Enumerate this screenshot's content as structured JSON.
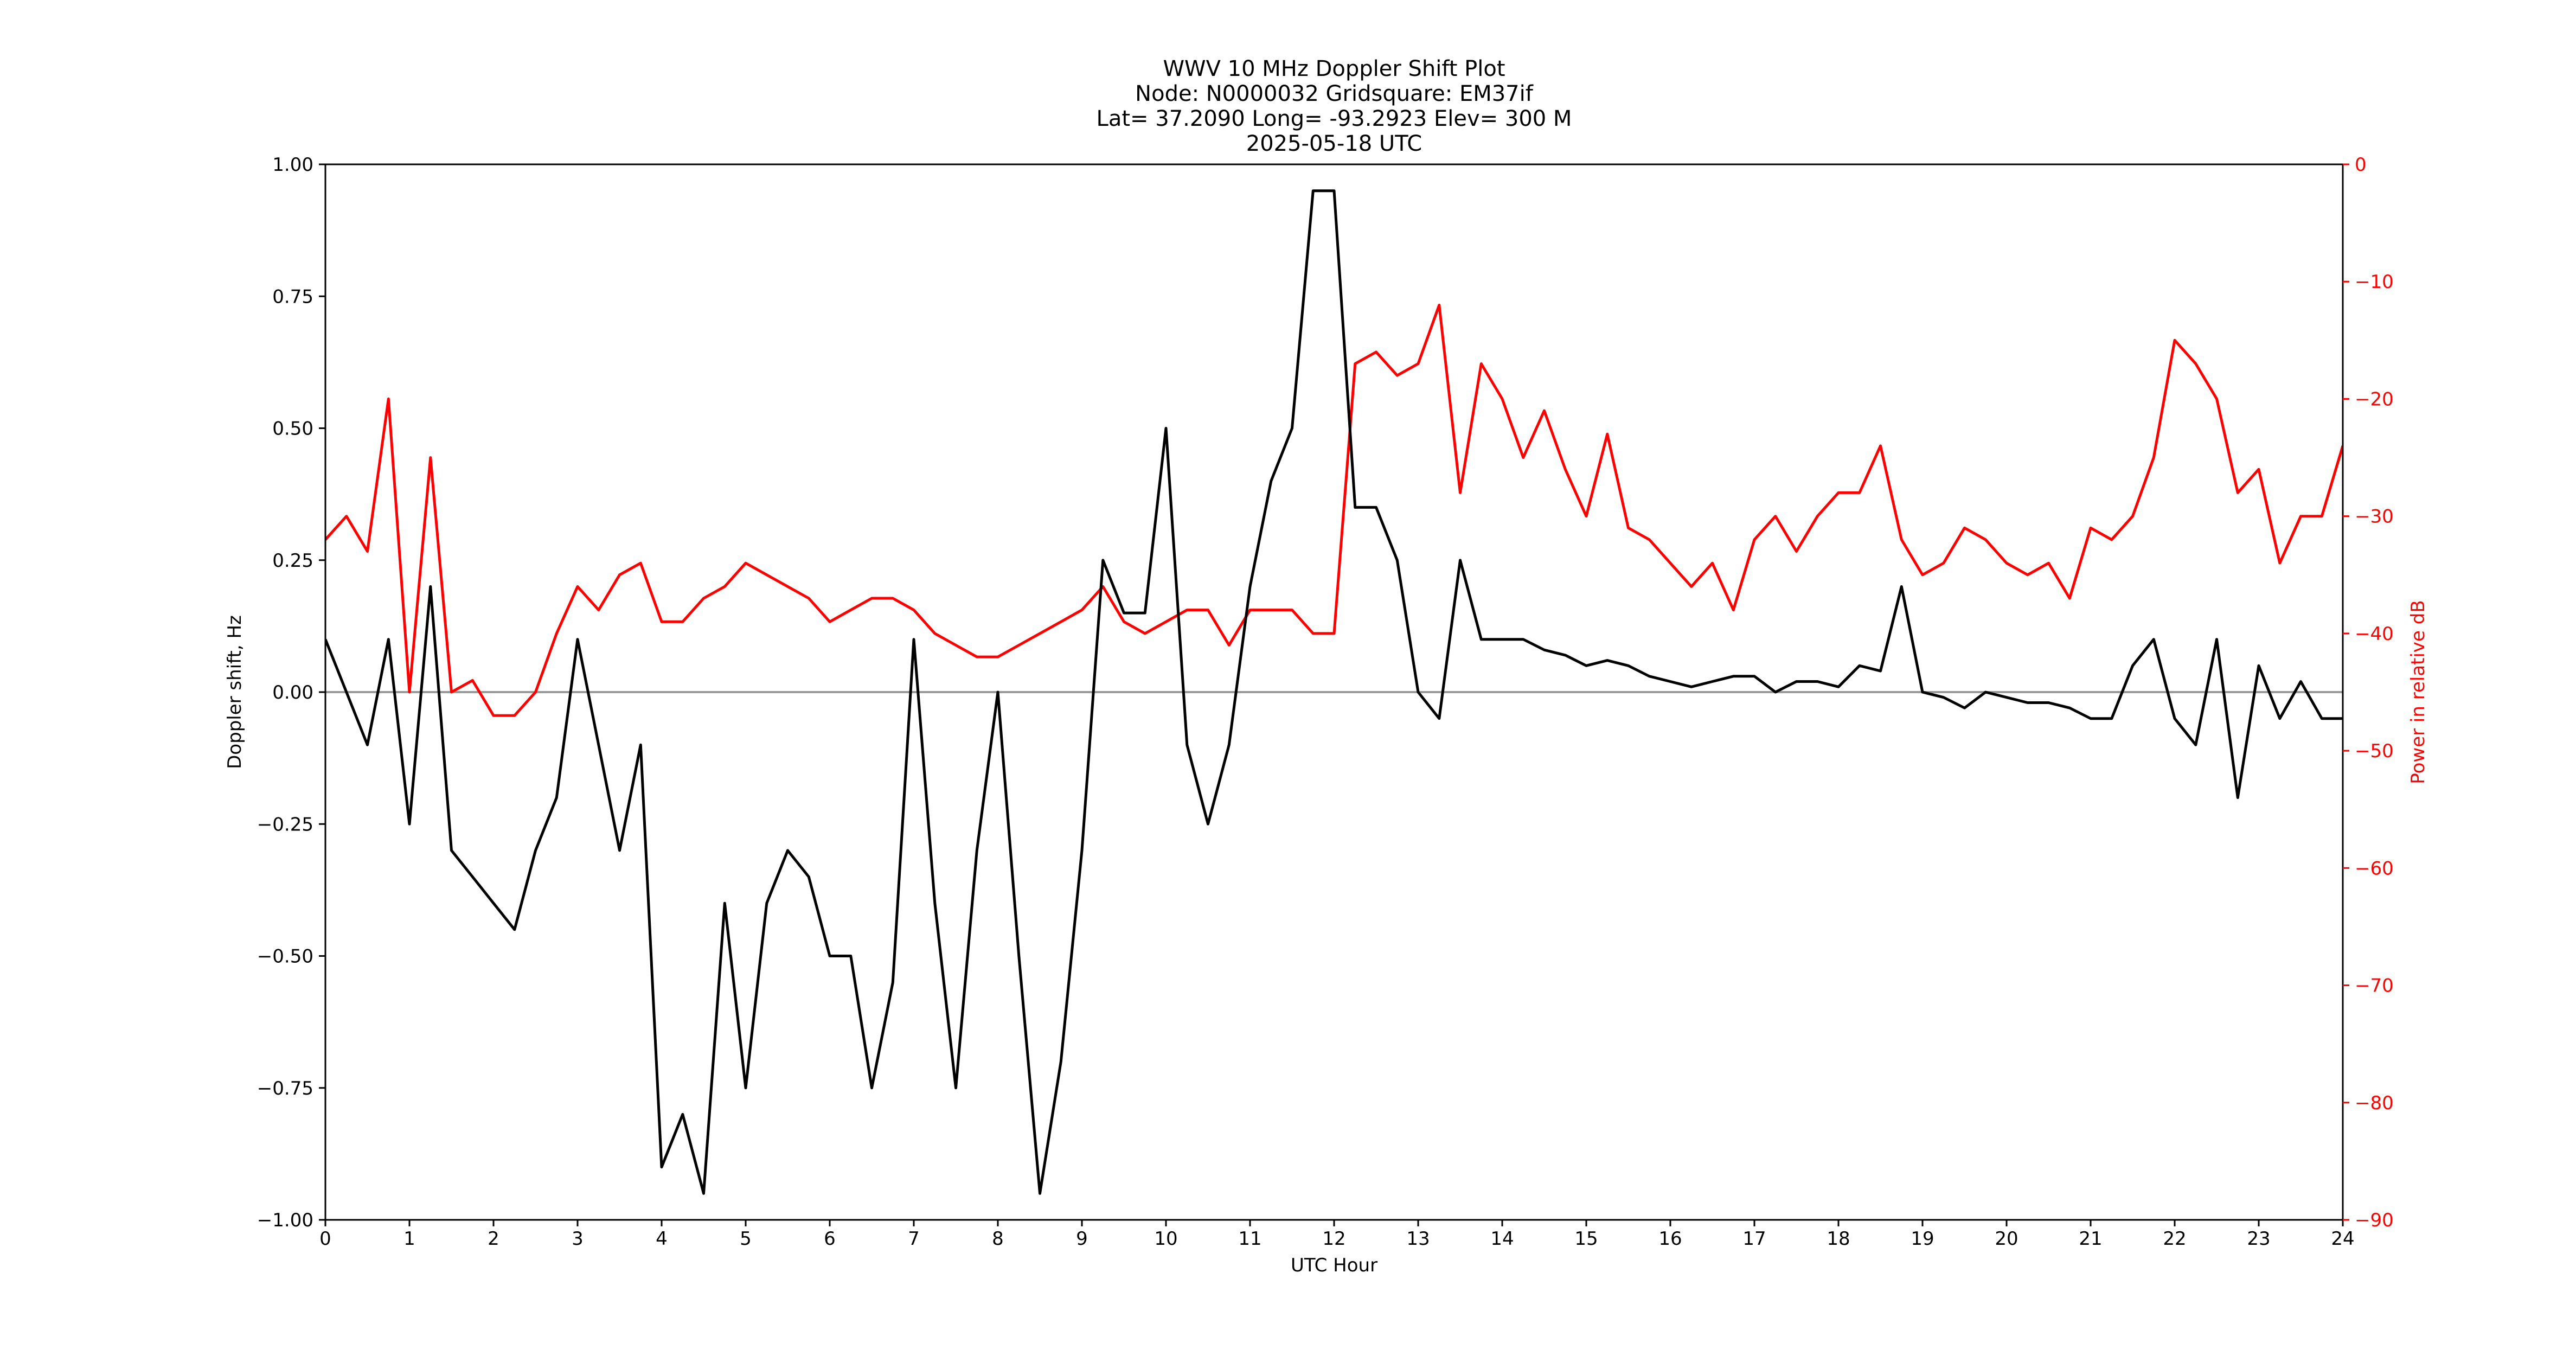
{
  "chart_data": {
    "type": "line",
    "title_lines": [
      "WWV 10 MHz Doppler Shift Plot",
      "Node:  N0000032     Gridsquare:  EM37if",
      "Lat= 37.2090    Long= -93.2923    Elev= 300 M",
      "2025-05-18  UTC"
    ],
    "xlabel": "UTC Hour",
    "ylabel": "Doppler shift, Hz",
    "y2label": "Power in relative dB",
    "y2color": "#ff0000",
    "x": [
      0,
      0.25,
      0.5,
      0.75,
      1,
      1.25,
      1.5,
      1.75,
      2,
      2.25,
      2.5,
      2.75,
      3,
      3.25,
      3.5,
      3.75,
      4,
      4.25,
      4.5,
      4.75,
      5,
      5.25,
      5.5,
      5.75,
      6,
      6.25,
      6.5,
      6.75,
      7,
      7.25,
      7.5,
      7.75,
      8,
      8.25,
      8.5,
      8.75,
      9,
      9.25,
      9.5,
      9.75,
      10,
      10.25,
      10.5,
      10.75,
      11,
      11.25,
      11.5,
      11.75,
      12,
      12.25,
      12.5,
      12.75,
      13,
      13.25,
      13.5,
      13.75,
      14,
      14.25,
      14.5,
      14.75,
      15,
      15.25,
      15.5,
      15.75,
      16,
      16.25,
      16.5,
      16.75,
      17,
      17.25,
      17.5,
      17.75,
      18,
      18.25,
      18.5,
      18.75,
      19,
      19.25,
      19.5,
      19.75,
      20,
      20.25,
      20.5,
      20.75,
      21,
      21.25,
      21.5,
      21.75,
      22,
      22.25,
      22.5,
      22.75,
      23,
      23.25,
      23.5,
      23.75,
      24
    ],
    "series": [
      {
        "name": "Doppler shift",
        "color": "#000000",
        "axis": "y",
        "values": [
          0.1,
          0.0,
          -0.1,
          0.1,
          -0.25,
          0.2,
          -0.3,
          -0.35,
          -0.4,
          -0.45,
          -0.3,
          -0.2,
          0.1,
          -0.1,
          -0.3,
          -0.1,
          -0.9,
          -0.8,
          -0.95,
          -0.4,
          -0.75,
          -0.4,
          -0.3,
          -0.35,
          -0.5,
          -0.5,
          -0.75,
          -0.55,
          0.1,
          -0.4,
          -0.75,
          -0.3,
          0.0,
          -0.5,
          -0.95,
          -0.7,
          -0.3,
          0.25,
          0.15,
          0.15,
          0.5,
          -0.1,
          -0.25,
          -0.1,
          0.2,
          0.4,
          0.5,
          0.95,
          0.95,
          0.35,
          0.35,
          0.25,
          0.0,
          -0.05,
          0.25,
          0.1,
          0.1,
          0.1,
          0.08,
          0.07,
          0.05,
          0.06,
          0.05,
          0.03,
          0.02,
          0.01,
          0.02,
          0.03,
          0.03,
          0.0,
          0.02,
          0.02,
          0.01,
          0.05,
          0.04,
          0.2,
          0.0,
          -0.01,
          -0.03,
          0.0,
          -0.01,
          -0.02,
          -0.02,
          -0.03,
          -0.05,
          -0.05,
          0.05,
          0.1,
          -0.05,
          -0.1,
          0.1,
          -0.2,
          0.05,
          -0.05,
          0.02,
          -0.05,
          -0.05
        ]
      },
      {
        "name": "Power",
        "color": "#ff0000",
        "axis": "y2",
        "values": [
          -32,
          -30,
          -33,
          -20,
          -45,
          -25,
          -45,
          -44,
          -47,
          -47,
          -45,
          -40,
          -36,
          -38,
          -35,
          -34,
          -39,
          -39,
          -37,
          -36,
          -34,
          -35,
          -36,
          -37,
          -39,
          -38,
          -37,
          -37,
          -38,
          -40,
          -41,
          -42,
          -42,
          -41,
          -40,
          -39,
          -38,
          -36,
          -39,
          -40,
          -39,
          -38,
          -38,
          -41,
          -38,
          -38,
          -38,
          -40,
          -40,
          -17,
          -16,
          -18,
          -17,
          -12,
          -28,
          -17,
          -20,
          -25,
          -21,
          -26,
          -30,
          -23,
          -31,
          -32,
          -34,
          -36,
          -34,
          -38,
          -32,
          -30,
          -33,
          -30,
          -28,
          -28,
          -24,
          -32,
          -35,
          -34,
          -31,
          -32,
          -34,
          -35,
          -34,
          -37,
          -31,
          -32,
          -30,
          -25,
          -15,
          -17,
          -20,
          -28,
          -26,
          -34,
          -30,
          -30,
          -24
        ]
      }
    ],
    "hline": 0,
    "hline_color": "#999999",
    "xlim": [
      0,
      24
    ],
    "xticks": [
      0,
      1,
      2,
      3,
      4,
      5,
      6,
      7,
      8,
      9,
      10,
      11,
      12,
      13,
      14,
      15,
      16,
      17,
      18,
      19,
      20,
      21,
      22,
      23,
      24
    ],
    "ylim": [
      -1,
      1
    ],
    "yticks": [
      {
        "value": -1,
        "label": "−1.00"
      },
      {
        "value": -0.75,
        "label": "−0.75"
      },
      {
        "value": -0.5,
        "label": "−0.50"
      },
      {
        "value": -0.25,
        "label": "−0.25"
      },
      {
        "value": 0,
        "label": "0.00"
      },
      {
        "value": 0.25,
        "label": "0.25"
      },
      {
        "value": 0.5,
        "label": "0.50"
      },
      {
        "value": 0.75,
        "label": "0.75"
      },
      {
        "value": 1,
        "label": "1.00"
      }
    ],
    "y2lim": [
      -90,
      0
    ],
    "y2ticks": [
      {
        "value": -90,
        "label": "−90"
      },
      {
        "value": -80,
        "label": "−80"
      },
      {
        "value": -70,
        "label": "−70"
      },
      {
        "value": -60,
        "label": "−60"
      },
      {
        "value": -50,
        "label": "−50"
      },
      {
        "value": -40,
        "label": "−40"
      },
      {
        "value": -30,
        "label": "−30"
      },
      {
        "value": -20,
        "label": "−20"
      },
      {
        "value": -10,
        "label": "−10"
      },
      0
    ],
    "grid": false
  }
}
